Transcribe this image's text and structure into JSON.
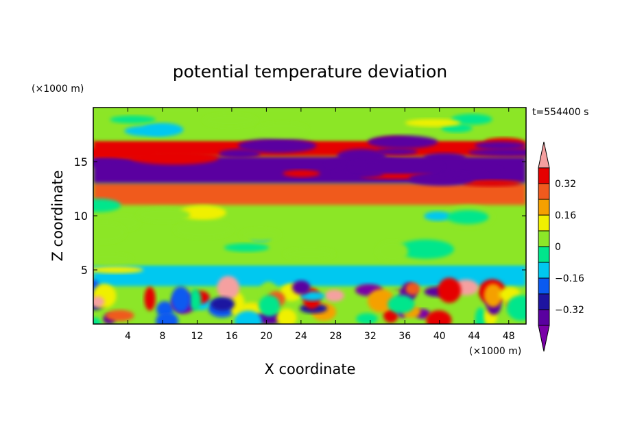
{
  "chart_data": {
    "type": "heatmap",
    "title": "potential temperature deviation",
    "xlabel": "X coordinate",
    "ylabel": "Z coordinate",
    "x_unit": "(×1000 m)",
    "y_unit": "(×1000 m)",
    "time_label": "t=554400 s",
    "xlim": [
      0,
      50
    ],
    "ylim": [
      0,
      20
    ],
    "x_ticks": [
      4,
      8,
      12,
      16,
      20,
      24,
      28,
      32,
      36,
      40,
      44,
      48
    ],
    "y_ticks": [
      5,
      10,
      15
    ],
    "colorbar": {
      "levels": [
        -0.4,
        -0.32,
        -0.24,
        -0.16,
        -0.08,
        0,
        0.08,
        0.16,
        0.24,
        0.32,
        0.4
      ],
      "labels": [
        "0.32",
        "0.16",
        "0",
        "−0.16",
        "−0.32"
      ],
      "label_values": [
        0.32,
        0.16,
        0,
        -0.16,
        -0.32
      ],
      "colors": [
        "#7a00a8",
        "#5a00a0",
        "#1e14a0",
        "#0a5af0",
        "#00c8f0",
        "#00e68c",
        "#8ce628",
        "#f0f000",
        "#f5a000",
        "#f05a1e",
        "#e60000",
        "#f5a0a0"
      ],
      "extend": "both"
    },
    "layers": [
      {
        "zmin": 0,
        "zmax": 3.5,
        "pattern": "convective cells, -0.4 to +0.4"
      },
      {
        "zmin": 3.5,
        "zmax": 5.5,
        "value": -0.12
      },
      {
        "zmin": 5.5,
        "zmax": 11,
        "value": 0.04
      },
      {
        "zmin": 11,
        "zmax": 13,
        "value": 0.3
      },
      {
        "zmin": 13,
        "zmax": 15.5,
        "value": -0.35
      },
      {
        "zmin": 15.5,
        "zmax": 17,
        "value": 0.35
      },
      {
        "zmin": 17,
        "zmax": 20,
        "value": 0.04
      }
    ]
  }
}
